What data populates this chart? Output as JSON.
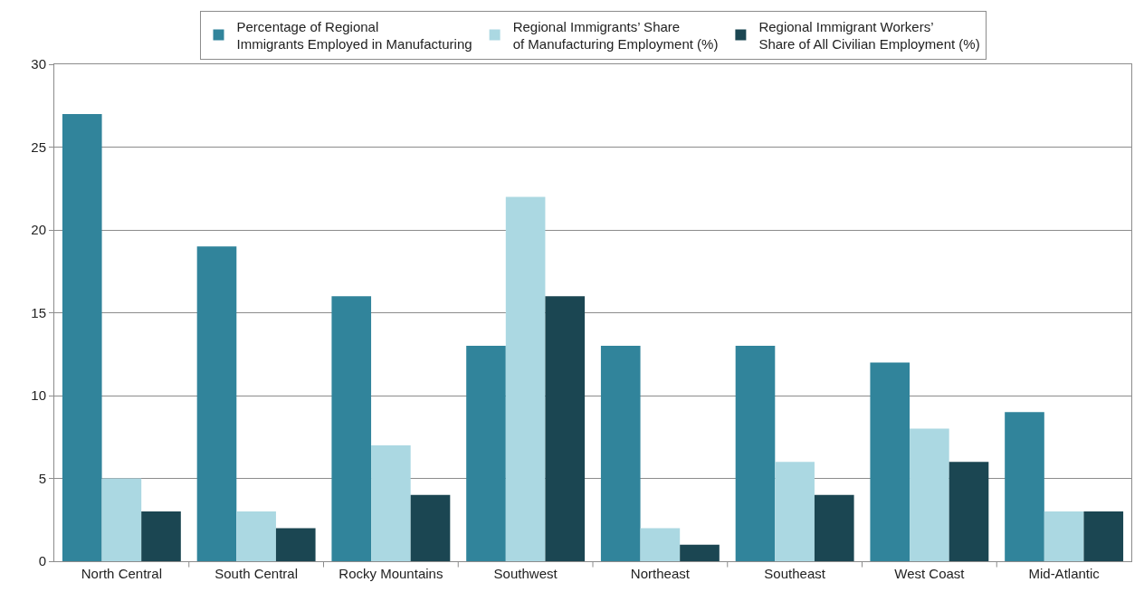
{
  "chart_data": {
    "type": "bar",
    "categories": [
      "North Central",
      "South Central",
      "Rocky Mountains",
      "Southwest",
      "Northeast",
      "Southeast",
      "West Coast",
      "Mid-Atlantic"
    ],
    "series": [
      {
        "name": "Percentage of Regional Immigrants Employed in Manufacturing",
        "color": "#31849b",
        "values": [
          27,
          19,
          16,
          13,
          13,
          13,
          12,
          9
        ]
      },
      {
        "name": "Regional Immigrants’ Share of Manufacturing Employment (%)",
        "color": "#abd8e2",
        "values": [
          5,
          3,
          7,
          22,
          2,
          6,
          8,
          3
        ]
      },
      {
        "name": "Regional Immigrant Workers’ Share of All Civilian Employment (%)",
        "color": "#1b4652",
        "values": [
          3,
          2,
          4,
          16,
          1,
          4,
          6,
          3
        ]
      }
    ],
    "ylim": [
      0,
      30
    ],
    "yticks": [
      0,
      5,
      10,
      15,
      20,
      25,
      30
    ],
    "grid": "y",
    "legend": "top"
  }
}
